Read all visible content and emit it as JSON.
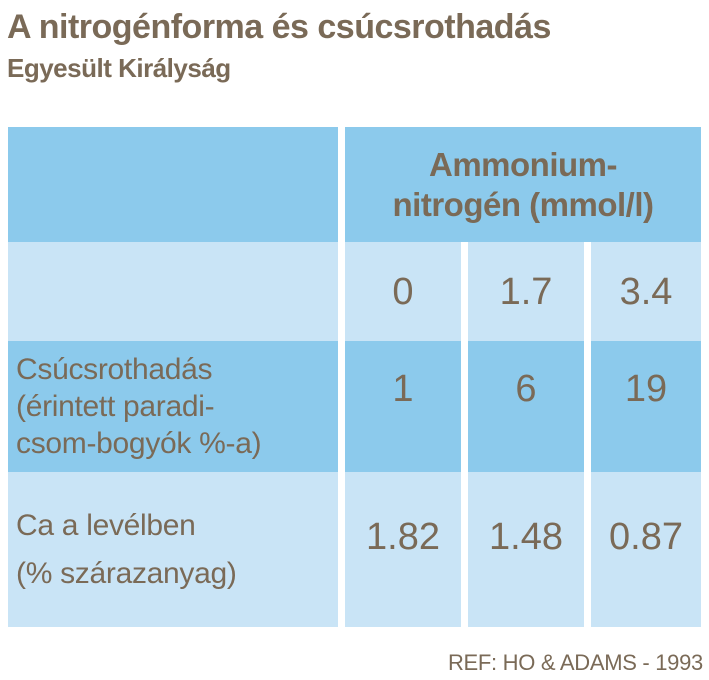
{
  "title": "A nitrogénforma és csúcsrothadás",
  "subtitle": "Egyesült Királyság",
  "footer": "REF: HO & ADAMS - 1993",
  "colors": {
    "header_row_blue": "#8ccaec",
    "light_row_blue": "#c9e4f6",
    "text_brown": "#7a6a57",
    "background": "#ffffff"
  },
  "table": {
    "group_header_lines": [
      "Ammonium-",
      "nitrogén (mmol/l)"
    ],
    "dose_values": [
      "0",
      "1.7",
      "3.4"
    ],
    "rows": [
      {
        "label_lines": [
          "Csúcsrothadás",
          "(érintett paradi-",
          "csom-bogyók %-a)"
        ],
        "values": [
          "1",
          "6",
          "19"
        ]
      },
      {
        "label_lines": [
          "Ca a levélben",
          "(% szárazanyag)"
        ],
        "values": [
          "1.82",
          "1.48",
          "0.87"
        ]
      }
    ]
  },
  "chart_data": {
    "type": "table",
    "title": "A nitrogénforma és csúcsrothadás",
    "subtitle": "Egyesült Királyság",
    "column_group_header": "Ammonium-nitrogén (mmol/l)",
    "columns": [
      0,
      1.7,
      3.4
    ],
    "rows": [
      {
        "label": "Csúcsrothadás (érintett paradicsom-bogyók %-a)",
        "values": [
          1,
          6,
          19
        ]
      },
      {
        "label": "Ca a levélben (% szárazanyag)",
        "values": [
          1.82,
          1.48,
          0.87
        ]
      }
    ],
    "reference": "REF: HO & ADAMS - 1993"
  }
}
